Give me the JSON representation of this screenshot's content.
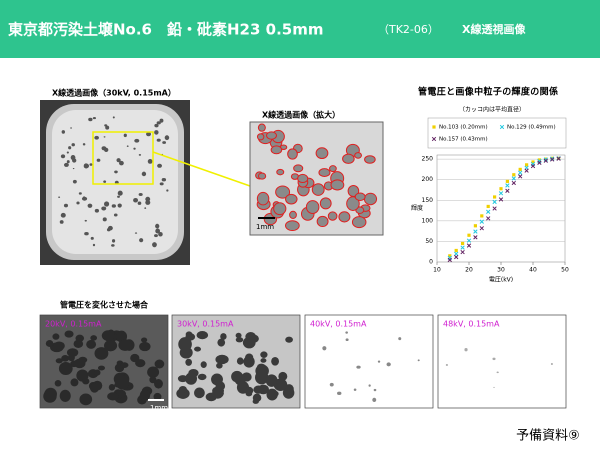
{
  "header": {
    "title": "東京都汚染土壌No.6　鉛・砒素H23 0.5mm",
    "code": "（TK2-06）",
    "subtitle": "X線透視画像"
  },
  "overview": {
    "caption": "X線透過画像（30kV, 0.15mA）"
  },
  "zoom": {
    "caption": "X線透過画像（拡大）",
    "scale": "1mm"
  },
  "chart_data": {
    "type": "scatter",
    "title": "管電圧と画像中粒子の輝度の関係",
    "subtitle": "（カッコ内は平均直径）",
    "x_label": "電圧(kV)",
    "y_label": "輝度",
    "x": [
      14,
      16,
      18,
      20,
      22,
      24,
      26,
      28,
      30,
      32,
      34,
      36,
      38,
      40,
      42,
      44,
      46,
      48
    ],
    "series": [
      {
        "name": "No.103 (0.20mm)",
        "color": "#f0d000",
        "marker": "square",
        "values": [
          15,
          28,
          45,
          65,
          88,
          112,
          135,
          158,
          178,
          196,
          212,
          225,
          236,
          243,
          248,
          250,
          252,
          252
        ]
      },
      {
        "name": "No.129 (0.49mm)",
        "color": "#20c8e0",
        "marker": "x",
        "values": [
          10,
          20,
          35,
          52,
          74,
          98,
          122,
          146,
          167,
          186,
          203,
          217,
          229,
          238,
          245,
          249,
          251,
          252
        ]
      },
      {
        "name": "No.157 (0.43mm)",
        "color": "#602060",
        "marker": "x",
        "values": [
          5,
          12,
          24,
          40,
          60,
          82,
          106,
          130,
          152,
          173,
          192,
          208,
          222,
          233,
          241,
          246,
          249,
          251
        ]
      }
    ],
    "xlim": [
      10,
      50
    ],
    "xticks": [
      10,
      20,
      30,
      40,
      50
    ],
    "ylim": [
      0,
      260
    ],
    "yticks": [
      0,
      50,
      100,
      150,
      200,
      250
    ],
    "grid": true
  },
  "comparison": {
    "caption": "管電圧を変化させた場合",
    "scale": "1mm",
    "panels": [
      "20kV, 0.15mA",
      "30kV, 0.15mA",
      "40kV, 0.15mA",
      "48kV, 0.15mA"
    ]
  },
  "footer": "予備資料⑨"
}
